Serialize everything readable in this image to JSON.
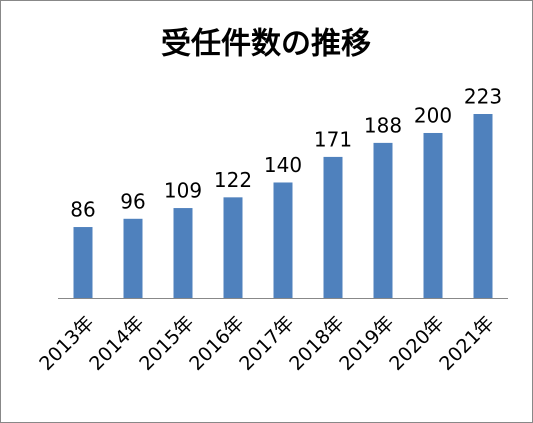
{
  "chart_data": {
    "type": "bar",
    "title": "受任件数の推移",
    "categories": [
      "2013年",
      "2014年",
      "2015年",
      "2016年",
      "2017年",
      "2018年",
      "2019年",
      "2020年",
      "2021年"
    ],
    "values": [
      86,
      96,
      109,
      122,
      140,
      171,
      188,
      200,
      223
    ],
    "color": "#4f81bd"
  }
}
